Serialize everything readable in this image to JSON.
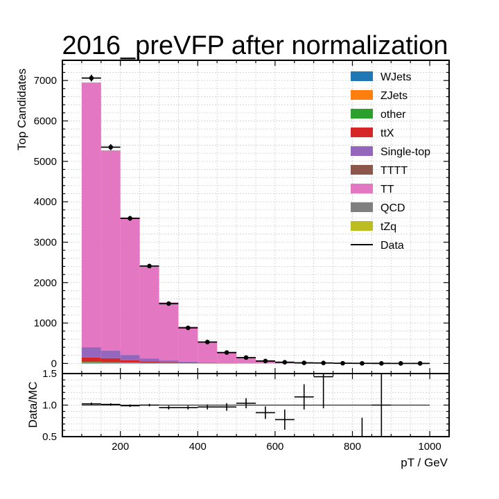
{
  "chart_data": {
    "type": "bar",
    "subtype": "stacked-histogram-with-ratio",
    "title": "2016_preVFP after normalization",
    "xlabel": "pT / GeV",
    "ylabel": "Top Candidates",
    "ratio_ylabel": "Data/MC",
    "xlim": [
      50,
      1050
    ],
    "ylim": [
      -250,
      7500
    ],
    "ratio_ylim": [
      0.5,
      1.5
    ],
    "grid": true,
    "legend_position": "top-right",
    "x_ticks": [
      200,
      400,
      600,
      800,
      1000
    ],
    "y_ticks": [
      0,
      1000,
      2000,
      3000,
      4000,
      5000,
      6000,
      7000
    ],
    "ratio_ticks": [
      0.5,
      1.0,
      1.5
    ],
    "bin_edges": [
      100,
      150,
      200,
      250,
      300,
      350,
      400,
      450,
      500,
      550,
      600,
      650,
      700,
      750,
      800,
      850,
      900,
      950,
      1000
    ],
    "series": [
      {
        "name": "WJets",
        "color": "#1f77b4",
        "values": [
          20,
          15,
          10,
          8,
          5,
          3,
          2,
          1,
          1,
          0,
          0,
          0,
          0,
          0,
          0,
          0,
          0,
          0
        ]
      },
      {
        "name": "ZJets",
        "color": "#ff7f0e",
        "values": [
          10,
          8,
          5,
          3,
          2,
          1,
          1,
          0,
          0,
          0,
          0,
          0,
          0,
          0,
          0,
          0,
          0,
          0
        ]
      },
      {
        "name": "other",
        "color": "#2ca02c",
        "values": [
          10,
          8,
          6,
          4,
          3,
          2,
          1,
          1,
          0,
          0,
          0,
          0,
          0,
          0,
          0,
          0,
          0,
          0
        ]
      },
      {
        "name": "ttX",
        "color": "#d62728",
        "values": [
          110,
          100,
          60,
          40,
          25,
          15,
          8,
          5,
          3,
          1,
          1,
          0,
          0,
          0,
          0,
          0,
          0,
          0
        ]
      },
      {
        "name": "Single-top",
        "color": "#9467bd",
        "values": [
          250,
          190,
          130,
          70,
          40,
          25,
          13,
          7,
          4,
          2,
          1,
          0,
          0,
          0,
          0,
          0,
          0,
          0
        ]
      },
      {
        "name": "TTTT",
        "color": "#8c564b",
        "values": [
          0,
          0,
          0,
          0,
          0,
          0,
          0,
          0,
          0,
          0,
          0,
          0,
          0,
          0,
          0,
          0,
          0,
          0
        ]
      },
      {
        "name": "TT",
        "color": "#e377c2",
        "values": [
          6550,
          4950,
          3400,
          2270,
          1435,
          865,
          505,
          262,
          132,
          67,
          33,
          15,
          10,
          4,
          2,
          1,
          1,
          0
        ]
      },
      {
        "name": "QCD",
        "color": "#7f7f7f",
        "values": [
          0,
          0,
          0,
          0,
          0,
          0,
          0,
          0,
          0,
          0,
          0,
          0,
          0,
          0,
          0,
          0,
          0,
          0
        ]
      },
      {
        "name": "tZq",
        "color": "#bcbd22",
        "values": [
          0,
          0,
          0,
          0,
          0,
          0,
          0,
          0,
          0,
          0,
          0,
          0,
          0,
          0,
          0,
          0,
          0,
          0
        ]
      }
    ],
    "data": {
      "name": "Data",
      "color": "#000000",
      "values": [
        7060,
        5350,
        3590,
        2410,
        1480,
        880,
        530,
        270,
        145,
        60,
        30,
        15,
        12,
        5,
        3,
        2,
        1,
        1
      ],
      "errors": [
        84,
        73,
        60,
        49,
        38,
        30,
        23,
        16,
        12,
        8,
        5,
        4,
        3,
        2,
        2,
        1,
        1,
        1
      ]
    },
    "ratio": {
      "values": [
        1.02,
        1.01,
        0.99,
        1.0,
        0.96,
        0.96,
        0.97,
        0.97,
        1.03,
        0.88,
        0.77,
        1.13,
        1.45,
        null,
        0.5,
        1.0,
        null,
        null
      ],
      "errors": [
        0.02,
        0.02,
        0.02,
        0.02,
        0.03,
        0.03,
        0.04,
        0.06,
        0.08,
        0.1,
        0.16,
        0.2,
        0.5,
        null,
        0.3,
        0.6,
        null,
        null
      ]
    }
  }
}
